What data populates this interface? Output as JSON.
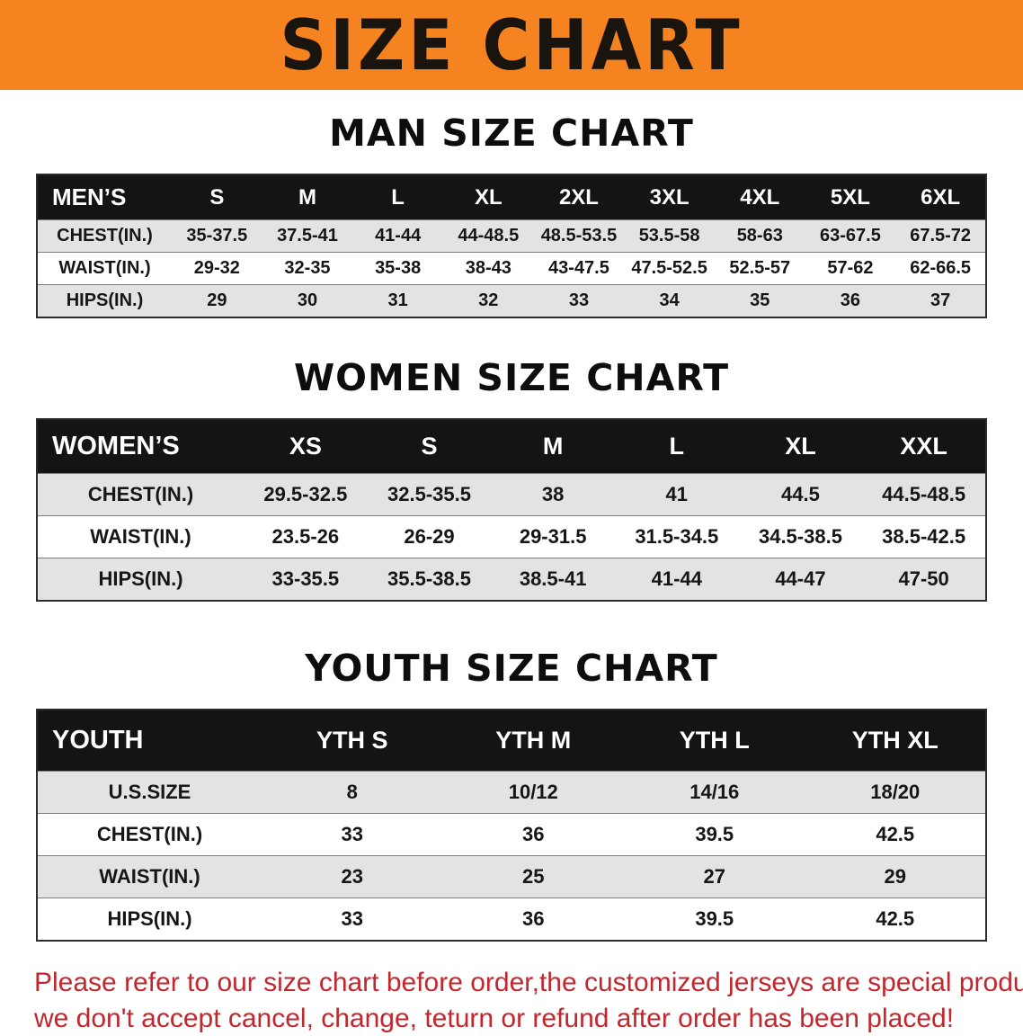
{
  "banner": {
    "title": "SIZE CHART"
  },
  "colors": {
    "banner_bg": "#f5831f",
    "header_bg": "#141414",
    "header_text": "#ffffff",
    "row_alt_bg": "#e3e3e3",
    "disclaimer_text": "#c1272d"
  },
  "sections": [
    {
      "id": "men",
      "heading": "MAN SIZE CHART",
      "table": {
        "header": [
          "MEN’S",
          "S",
          "M",
          "L",
          "XL",
          "2XL",
          "3XL",
          "4XL",
          "5XL",
          "6XL"
        ],
        "rows": [
          [
            "CHEST(IN.)",
            "35-37.5",
            "37.5-41",
            "41-44",
            "44-48.5",
            "48.5-53.5",
            "53.5-58",
            "58-63",
            "63-67.5",
            "67.5-72"
          ],
          [
            "WAIST(IN.)",
            "29-32",
            "32-35",
            "35-38",
            "38-43",
            "43-47.5",
            "47.5-52.5",
            "52.5-57",
            "57-62",
            "62-66.5"
          ],
          [
            "HIPS(IN.)",
            "29",
            "30",
            "31",
            "32",
            "33",
            "34",
            "35",
            "36",
            "37"
          ]
        ]
      }
    },
    {
      "id": "women",
      "heading": "WOMEN SIZE CHART",
      "table": {
        "header": [
          "WOMEN’S",
          "XS",
          "S",
          "M",
          "L",
          "XL",
          "XXL"
        ],
        "rows": [
          [
            "CHEST(IN.)",
            "29.5-32.5",
            "32.5-35.5",
            "38",
            "41",
            "44.5",
            "44.5-48.5"
          ],
          [
            "WAIST(IN.)",
            "23.5-26",
            "26-29",
            "29-31.5",
            "31.5-34.5",
            "34.5-38.5",
            "38.5-42.5"
          ],
          [
            "HIPS(IN.)",
            "33-35.5",
            "35.5-38.5",
            "38.5-41",
            "41-44",
            "44-47",
            "47-50"
          ]
        ]
      }
    },
    {
      "id": "youth",
      "heading": "YOUTH SIZE CHART",
      "table": {
        "header": [
          "YOUTH",
          "YTH S",
          "YTH M",
          "YTH L",
          "YTH XL"
        ],
        "rows": [
          [
            "U.S.SIZE",
            "8",
            "10/12",
            "14/16",
            "18/20"
          ],
          [
            "CHEST(IN.)",
            "33",
            "36",
            "39.5",
            "42.5"
          ],
          [
            "WAIST(IN.)",
            "23",
            "25",
            "27",
            "29"
          ],
          [
            "HIPS(IN.)",
            "33",
            "36",
            "39.5",
            "42.5"
          ]
        ]
      }
    }
  ],
  "disclaimer": {
    "lines": [
      "Please refer to our size chart before order,the customized jerseys are special products,",
      "we don't accept cancel, change, teturn or refund after order has been placed!"
    ]
  }
}
